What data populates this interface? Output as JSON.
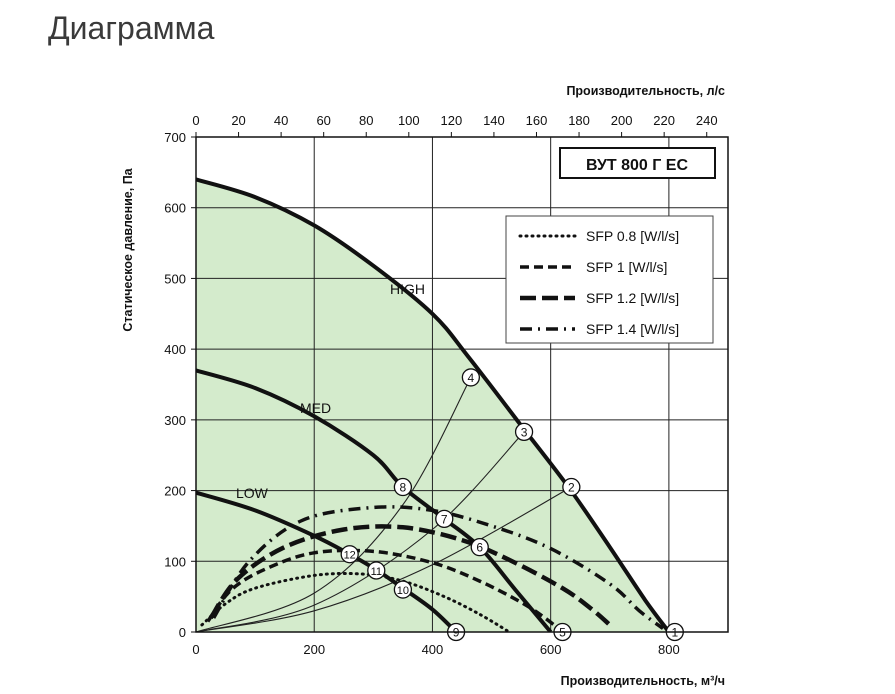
{
  "page": {
    "heading": "Диаграмма"
  },
  "chart_data": {
    "type": "line",
    "model_label": "ВУТ 800 Г ЕС",
    "xlabel": "Производительность, м³/ч",
    "x2label": "Производительность, л/с",
    "ylabel": "Статическое давление, Па",
    "xlim": [
      0,
      900
    ],
    "ylim": [
      0,
      700
    ],
    "x_ticks": [
      0,
      200,
      400,
      600,
      800
    ],
    "x2_ticks": [
      0,
      20,
      40,
      60,
      80,
      100,
      120,
      140,
      160,
      180,
      200,
      220,
      240
    ],
    "y_ticks": [
      0,
      100,
      200,
      300,
      400,
      500,
      600,
      700
    ],
    "grid": true,
    "legend_position": "top-right",
    "colors": {
      "fill": "#d4ebcc",
      "curve": "#111111",
      "grid": "#222222"
    },
    "fan_curves": [
      {
        "name": "HIGH",
        "points": [
          [
            0,
            640
          ],
          [
            100,
            615
          ],
          [
            200,
            575
          ],
          [
            300,
            518
          ],
          [
            400,
            450
          ],
          [
            460,
            390
          ],
          [
            550,
            292
          ],
          [
            630,
            205
          ],
          [
            700,
            120
          ],
          [
            760,
            45
          ],
          [
            800,
            0
          ]
        ]
      },
      {
        "name": "MED",
        "points": [
          [
            0,
            370
          ],
          [
            100,
            345
          ],
          [
            200,
            305
          ],
          [
            300,
            250
          ],
          [
            350,
            205
          ],
          [
            420,
            160
          ],
          [
            480,
            120
          ],
          [
            540,
            60
          ],
          [
            600,
            0
          ]
        ]
      },
      {
        "name": "LOW",
        "points": [
          [
            0,
            197
          ],
          [
            100,
            172
          ],
          [
            200,
            136
          ],
          [
            260,
            110
          ],
          [
            305,
            88
          ],
          [
            350,
            62
          ],
          [
            400,
            32
          ],
          [
            440,
            0
          ]
        ]
      }
    ],
    "sfp_curves": [
      {
        "name": "SFP 0.8 [W/l/s]",
        "style": "dotted",
        "points": [
          [
            10,
            10
          ],
          [
            50,
            40
          ],
          [
            100,
            62
          ],
          [
            200,
            80
          ],
          [
            280,
            82
          ],
          [
            350,
            72
          ],
          [
            420,
            50
          ],
          [
            480,
            25
          ],
          [
            530,
            0
          ]
        ]
      },
      {
        "name": "SFP 1 [W/l/s]",
        "style": "dashed",
        "points": [
          [
            20,
            15
          ],
          [
            60,
            60
          ],
          [
            120,
            90
          ],
          [
            200,
            112
          ],
          [
            300,
            114
          ],
          [
            400,
            98
          ],
          [
            480,
            72
          ],
          [
            550,
            42
          ],
          [
            590,
            20
          ],
          [
            620,
            0
          ]
        ]
      },
      {
        "name": "SFP 1.2 [W/l/s]",
        "style": "longdash",
        "points": [
          [
            25,
            20
          ],
          [
            70,
            75
          ],
          [
            150,
            120
          ],
          [
            250,
            145
          ],
          [
            350,
            148
          ],
          [
            450,
            130
          ],
          [
            530,
            102
          ],
          [
            620,
            62
          ],
          [
            670,
            32
          ],
          [
            700,
            10
          ]
        ]
      },
      {
        "name": "SFP 1.4 [W/l/s]",
        "style": "dashdot",
        "points": [
          [
            30,
            20
          ],
          [
            90,
            100
          ],
          [
            180,
            158
          ],
          [
            300,
            176
          ],
          [
            400,
            172
          ],
          [
            500,
            150
          ],
          [
            600,
            118
          ],
          [
            700,
            68
          ],
          [
            750,
            30
          ],
          [
            790,
            5
          ]
        ]
      }
    ],
    "operating_points": [
      {
        "label": "1",
        "x": 810,
        "y": 0
      },
      {
        "label": "2",
        "x": 635,
        "y": 205
      },
      {
        "label": "3",
        "x": 555,
        "y": 283
      },
      {
        "label": "4",
        "x": 465,
        "y": 360
      },
      {
        "label": "5",
        "x": 620,
        "y": 0
      },
      {
        "label": "6",
        "x": 480,
        "y": 120
      },
      {
        "label": "7",
        "x": 420,
        "y": 160
      },
      {
        "label": "8",
        "x": 350,
        "y": 205
      },
      {
        "label": "9",
        "x": 440,
        "y": 0
      },
      {
        "label": "10",
        "x": 350,
        "y": 60
      },
      {
        "label": "11",
        "x": 305,
        "y": 87
      },
      {
        "label": "12",
        "x": 260,
        "y": 110
      }
    ],
    "system_curves": [
      {
        "to_point": "1",
        "path": [
          [
            0,
            0
          ],
          [
            810,
            0
          ]
        ]
      },
      {
        "to_point": "2",
        "path": [
          [
            0,
            0
          ],
          [
            200,
            30
          ],
          [
            400,
            95
          ],
          [
            635,
            205
          ]
        ]
      },
      {
        "to_point": "3",
        "path": [
          [
            0,
            0
          ],
          [
            200,
            38
          ],
          [
            400,
            145
          ],
          [
            555,
            283
          ]
        ]
      },
      {
        "to_point": "4",
        "path": [
          [
            0,
            0
          ],
          [
            200,
            55
          ],
          [
            350,
            180
          ],
          [
            465,
            360
          ]
        ]
      }
    ]
  }
}
